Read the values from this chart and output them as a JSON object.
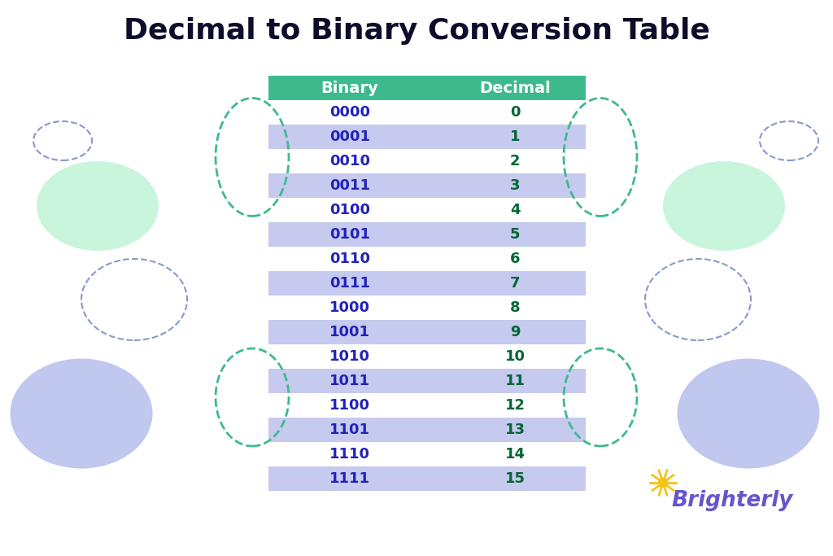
{
  "title": "Decimal to Binary Conversion Table",
  "title_fontsize": 26,
  "title_fontweight": "bold",
  "title_color": "#0d0d2b",
  "header_labels": [
    "Binary",
    "Decimal"
  ],
  "header_bg_color": "#3dba8c",
  "header_text_color": "#ffffff",
  "binary_values": [
    "0000",
    "0001",
    "0010",
    "0011",
    "0100",
    "0101",
    "0110",
    "0111",
    "1000",
    "1001",
    "1010",
    "1011",
    "1100",
    "1101",
    "1110",
    "1111"
  ],
  "decimal_values": [
    "0",
    "1",
    "2",
    "3",
    "4",
    "5",
    "6",
    "7",
    "8",
    "9",
    "10",
    "11",
    "12",
    "13",
    "14",
    "15"
  ],
  "row_bg_even": "#ffffff",
  "row_bg_odd": "#c5caee",
  "binary_col_color": "#2222bb",
  "decimal_col_color": "#006633",
  "bg_color": "#ffffff",
  "dashed_ellipse_color": "#3dba8c",
  "dashed_blue_color": "#8899cc",
  "green_ellipse_fill": "#c8f5dc",
  "blue_ellipse_fill": "#c0c8f0",
  "brighterly_text_color": "#6655cc",
  "brighterly_sun_color": "#f5c518",
  "header_fontsize": 14,
  "row_fontsize": 13
}
